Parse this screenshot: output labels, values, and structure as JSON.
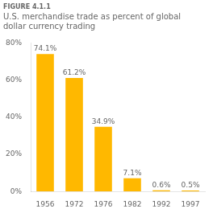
{
  "chart_data": {
    "type": "bar",
    "subtitle": "FIGURE 4.1.1",
    "title": "U.S. merchandise trade as percent of global\ndollar currency trading",
    "categories": [
      "1956",
      "1972",
      "1976",
      "1982",
      "1992",
      "1997"
    ],
    "values": [
      74.1,
      61.2,
      34.9,
      7.1,
      0.6,
      0.5
    ],
    "value_labels": [
      "74.1%",
      "61.2%",
      "34.9%",
      "7.1%",
      "0.6%",
      "0.5%"
    ],
    "data_labels": true,
    "color": "#FFB800",
    "ylim": [
      0,
      80
    ],
    "yticks": [
      {
        "value": 0,
        "label": "0%"
      },
      {
        "value": 20,
        "label": "20%"
      },
      {
        "value": 40,
        "label": "40%"
      },
      {
        "value": 60,
        "label": "60%"
      },
      {
        "value": 80,
        "label": "80%"
      }
    ],
    "grid": false
  }
}
